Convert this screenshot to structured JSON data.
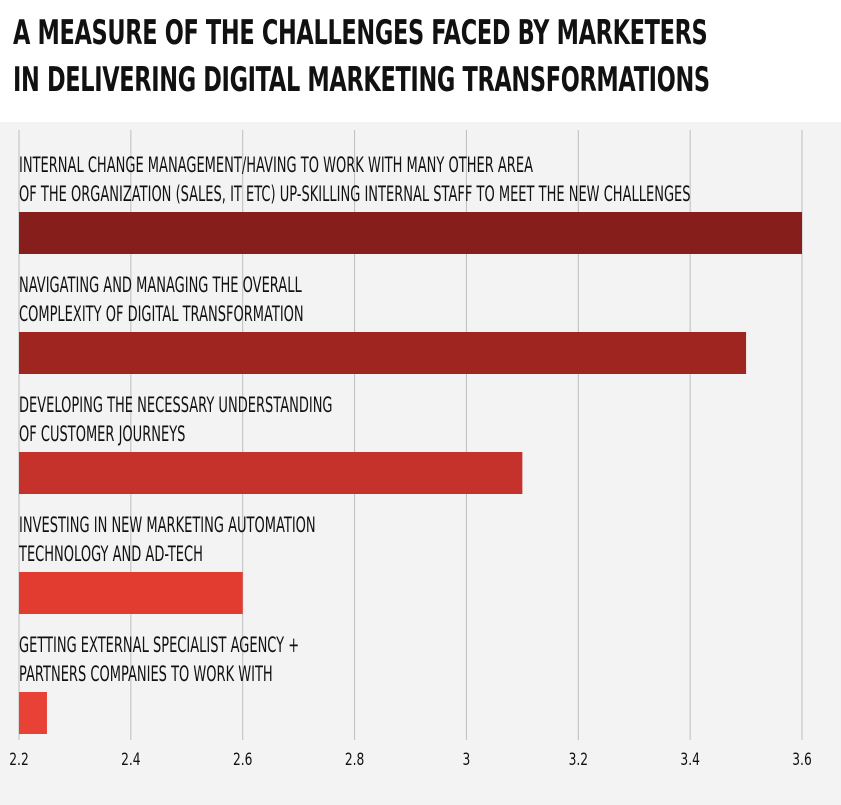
{
  "title": {
    "line1": "A MEASURE OF THE CHALLENGES FACED BY MARKETERS",
    "line2": "IN DELIVERING DIGITAL MARKETING TRANSFORMATIONS"
  },
  "chart_data": {
    "type": "bar",
    "orientation": "horizontal",
    "title": "A MEASURE OF THE CHALLENGES FACED BY MARKETERS IN DELIVERING DIGITAL MARKETING TRANSFORMATIONS",
    "xlabel": "",
    "ylabel": "",
    "xlim": [
      2.2,
      3.6
    ],
    "x_ticks": [
      "2.2",
      "2.4",
      "2.6",
      "2.8",
      "3",
      "3.2",
      "3.4",
      "3.6"
    ],
    "grid": true,
    "categories": [
      [
        "INTERNAL CHANGE MANAGEMENT/HAVING TO WORK WITH MANY OTHER AREA",
        "OF THE ORGANIZATION (SALES, IT ETC) UP-SKILLING INTERNAL STAFF TO MEET THE NEW CHALLENGES"
      ],
      [
        "NAVIGATING AND MANAGING THE OVERALL",
        "COMPLEXITY OF DIGITAL TRANSFORMATION"
      ],
      [
        "DEVELOPING THE NECESSARY UNDERSTANDING",
        "OF CUSTOMER JOURNEYS"
      ],
      [
        "INVESTING IN NEW MARKETING AUTOMATION",
        "TECHNOLOGY AND AD-TECH"
      ],
      [
        "GETTING EXTERNAL SPECIALIST AGENCY +",
        "PARTNERS COMPANIES TO WORK WITH"
      ]
    ],
    "values": [
      3.6,
      3.5,
      3.1,
      2.6,
      2.25
    ],
    "colors": [
      "#861f1b",
      "#9e2520",
      "#c5322b",
      "#e23b30",
      "#e84236"
    ]
  }
}
